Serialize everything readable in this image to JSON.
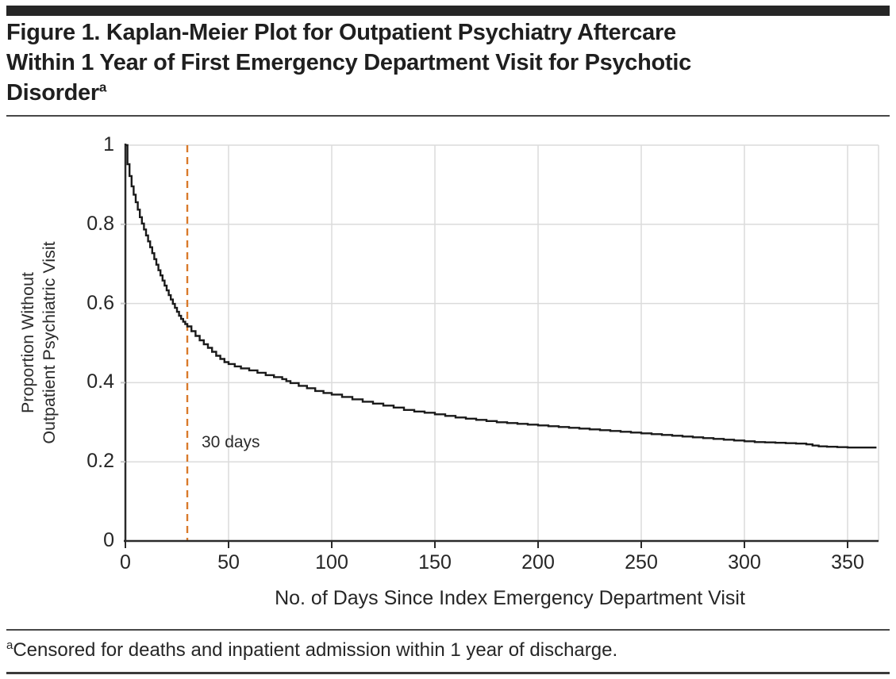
{
  "figure": {
    "title_lines": [
      "Figure 1. Kaplan-Meier Plot for Outpatient Psychiatry Aftercare",
      "Within 1 Year of First Emergency Department Visit for Psychotic",
      "Disorder"
    ],
    "title_superscript": "a",
    "footnote_superscript": "a",
    "footnote_text": "Censored for deaths and inpatient admission within 1 year of discharge."
  },
  "chart_data": {
    "type": "line",
    "subtype": "kaplan-meier-step",
    "title": "Kaplan-Meier Plot for Outpatient Psychiatry Aftercare Within 1 Year of First Emergency Department Visit for Psychotic Disorder",
    "xlabel": "No. of Days Since Index Emergency Department Visit",
    "ylabel_lines": [
      "Proportion Without",
      "Outpatient Psychiatric Visit"
    ],
    "xlim": [
      0,
      365
    ],
    "ylim": [
      0,
      1
    ],
    "x_ticks": [
      0,
      50,
      100,
      150,
      200,
      250,
      300,
      350
    ],
    "y_ticks": [
      0,
      0.2,
      0.4,
      0.6,
      0.8,
      1
    ],
    "y_tick_labels": [
      "0",
      "0.2",
      "0.4",
      "0.6",
      "0.8",
      "1"
    ],
    "grid": true,
    "legend": "none",
    "colors": {
      "curve": "#1a1a1a",
      "reference_line": "#D97A2B",
      "gridline": "#dbdbdb",
      "axis": "#2a2a2a",
      "x_tick": "#2a2a2a",
      "y_tick": "#c6c6c6"
    },
    "reference_line": {
      "x": 30,
      "label": "30 days",
      "style": "dashed"
    },
    "series": [
      {
        "name": "Proportion without outpatient psychiatric visit",
        "points": [
          [
            0,
            1.0
          ],
          [
            1,
            0.952
          ],
          [
            2,
            0.922
          ],
          [
            3,
            0.896
          ],
          [
            4,
            0.875
          ],
          [
            5,
            0.856
          ],
          [
            6,
            0.837
          ],
          [
            7,
            0.818
          ],
          [
            8,
            0.802
          ],
          [
            9,
            0.787
          ],
          [
            10,
            0.772
          ],
          [
            11,
            0.757
          ],
          [
            12,
            0.742
          ],
          [
            13,
            0.727
          ],
          [
            14,
            0.712
          ],
          [
            15,
            0.698
          ],
          [
            16,
            0.684
          ],
          [
            17,
            0.671
          ],
          [
            18,
            0.658
          ],
          [
            19,
            0.645
          ],
          [
            20,
            0.633
          ],
          [
            21,
            0.621
          ],
          [
            22,
            0.61
          ],
          [
            23,
            0.599
          ],
          [
            24,
            0.589
          ],
          [
            25,
            0.579
          ],
          [
            26,
            0.569
          ],
          [
            27,
            0.561
          ],
          [
            28,
            0.554
          ],
          [
            29,
            0.548
          ],
          [
            30,
            0.542
          ],
          [
            32,
            0.53
          ],
          [
            34,
            0.518
          ],
          [
            36,
            0.507
          ],
          [
            38,
            0.497
          ],
          [
            40,
            0.488
          ],
          [
            42,
            0.478
          ],
          [
            44,
            0.468
          ],
          [
            46,
            0.46
          ],
          [
            48,
            0.452
          ],
          [
            50,
            0.447
          ],
          [
            53,
            0.441
          ],
          [
            56,
            0.436
          ],
          [
            60,
            0.431
          ],
          [
            64,
            0.425
          ],
          [
            68,
            0.419
          ],
          [
            72,
            0.414
          ],
          [
            76,
            0.409
          ],
          [
            78,
            0.404
          ],
          [
            80,
            0.399
          ],
          [
            84,
            0.392
          ],
          [
            88,
            0.386
          ],
          [
            92,
            0.379
          ],
          [
            96,
            0.374
          ],
          [
            100,
            0.37
          ],
          [
            105,
            0.364
          ],
          [
            110,
            0.358
          ],
          [
            115,
            0.352
          ],
          [
            120,
            0.347
          ],
          [
            125,
            0.342
          ],
          [
            130,
            0.337
          ],
          [
            135,
            0.331
          ],
          [
            140,
            0.327
          ],
          [
            145,
            0.324
          ],
          [
            150,
            0.32
          ],
          [
            155,
            0.316
          ],
          [
            160,
            0.312
          ],
          [
            165,
            0.309
          ],
          [
            170,
            0.306
          ],
          [
            175,
            0.303
          ],
          [
            180,
            0.3
          ],
          [
            185,
            0.298
          ],
          [
            190,
            0.296
          ],
          [
            195,
            0.294
          ],
          [
            200,
            0.292
          ],
          [
            205,
            0.29
          ],
          [
            210,
            0.288
          ],
          [
            215,
            0.286
          ],
          [
            220,
            0.284
          ],
          [
            225,
            0.282
          ],
          [
            230,
            0.28
          ],
          [
            235,
            0.278
          ],
          [
            240,
            0.276
          ],
          [
            245,
            0.274
          ],
          [
            250,
            0.272
          ],
          [
            255,
            0.27
          ],
          [
            260,
            0.268
          ],
          [
            265,
            0.266
          ],
          [
            270,
            0.264
          ],
          [
            275,
            0.262
          ],
          [
            280,
            0.26
          ],
          [
            285,
            0.258
          ],
          [
            290,
            0.256
          ],
          [
            295,
            0.254
          ],
          [
            300,
            0.252
          ],
          [
            305,
            0.25
          ],
          [
            310,
            0.249
          ],
          [
            315,
            0.248
          ],
          [
            320,
            0.247
          ],
          [
            325,
            0.246
          ],
          [
            330,
            0.244
          ],
          [
            333,
            0.241
          ],
          [
            336,
            0.239
          ],
          [
            340,
            0.238
          ],
          [
            345,
            0.237
          ],
          [
            350,
            0.236
          ],
          [
            364,
            0.236
          ]
        ]
      }
    ]
  }
}
